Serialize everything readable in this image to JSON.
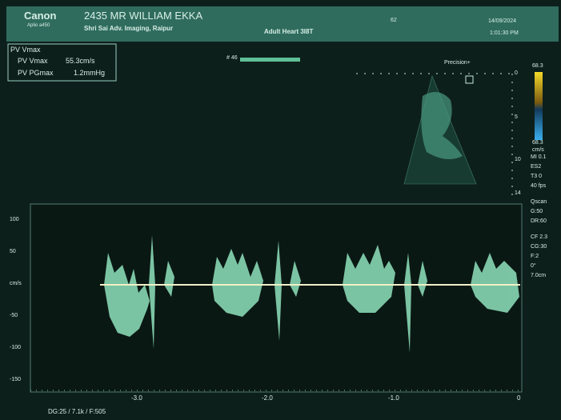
{
  "header": {
    "brand": "Canon",
    "model": "Aplio a450",
    "patient": "2435 MR WILLIAM EKKA",
    "institution": "Shri Sai Adv. Imaging, Raipur",
    "preset": "Adult Heart 3I8T",
    "frame": "62",
    "date": "14/09/2024",
    "time": "1:01:30 PM"
  },
  "measurements": {
    "title": "PV Vmax",
    "rows": [
      [
        "PV Vmax",
        "55.3cm/s"
      ],
      [
        "PV PGmax",
        "1.2mmHg"
      ]
    ]
  },
  "cine": "# 46",
  "precision": "Precision+",
  "color_scale": {
    "top": "68.3",
    "bottom": "68.3",
    "unit": "cm/s"
  },
  "depth_labels": [
    "0",
    "5",
    "10",
    "14"
  ],
  "parameters": [
    "MI 0.1",
    "ES2",
    "T3 0",
    "40 fps",
    "Qscan",
    "G:50",
    "DR:60",
    "CF 2.3",
    "CG:30",
    "F:2",
    "0°",
    "7.0cm"
  ],
  "doppler": {
    "y_labels": [
      "100",
      "50",
      "cm/s",
      "-50",
      "-100",
      "-150"
    ],
    "x_labels": [
      "-3.0",
      "-2.0",
      "-1.0",
      "0"
    ]
  },
  "footer": "DG:25 / 7.1k / F:505"
}
